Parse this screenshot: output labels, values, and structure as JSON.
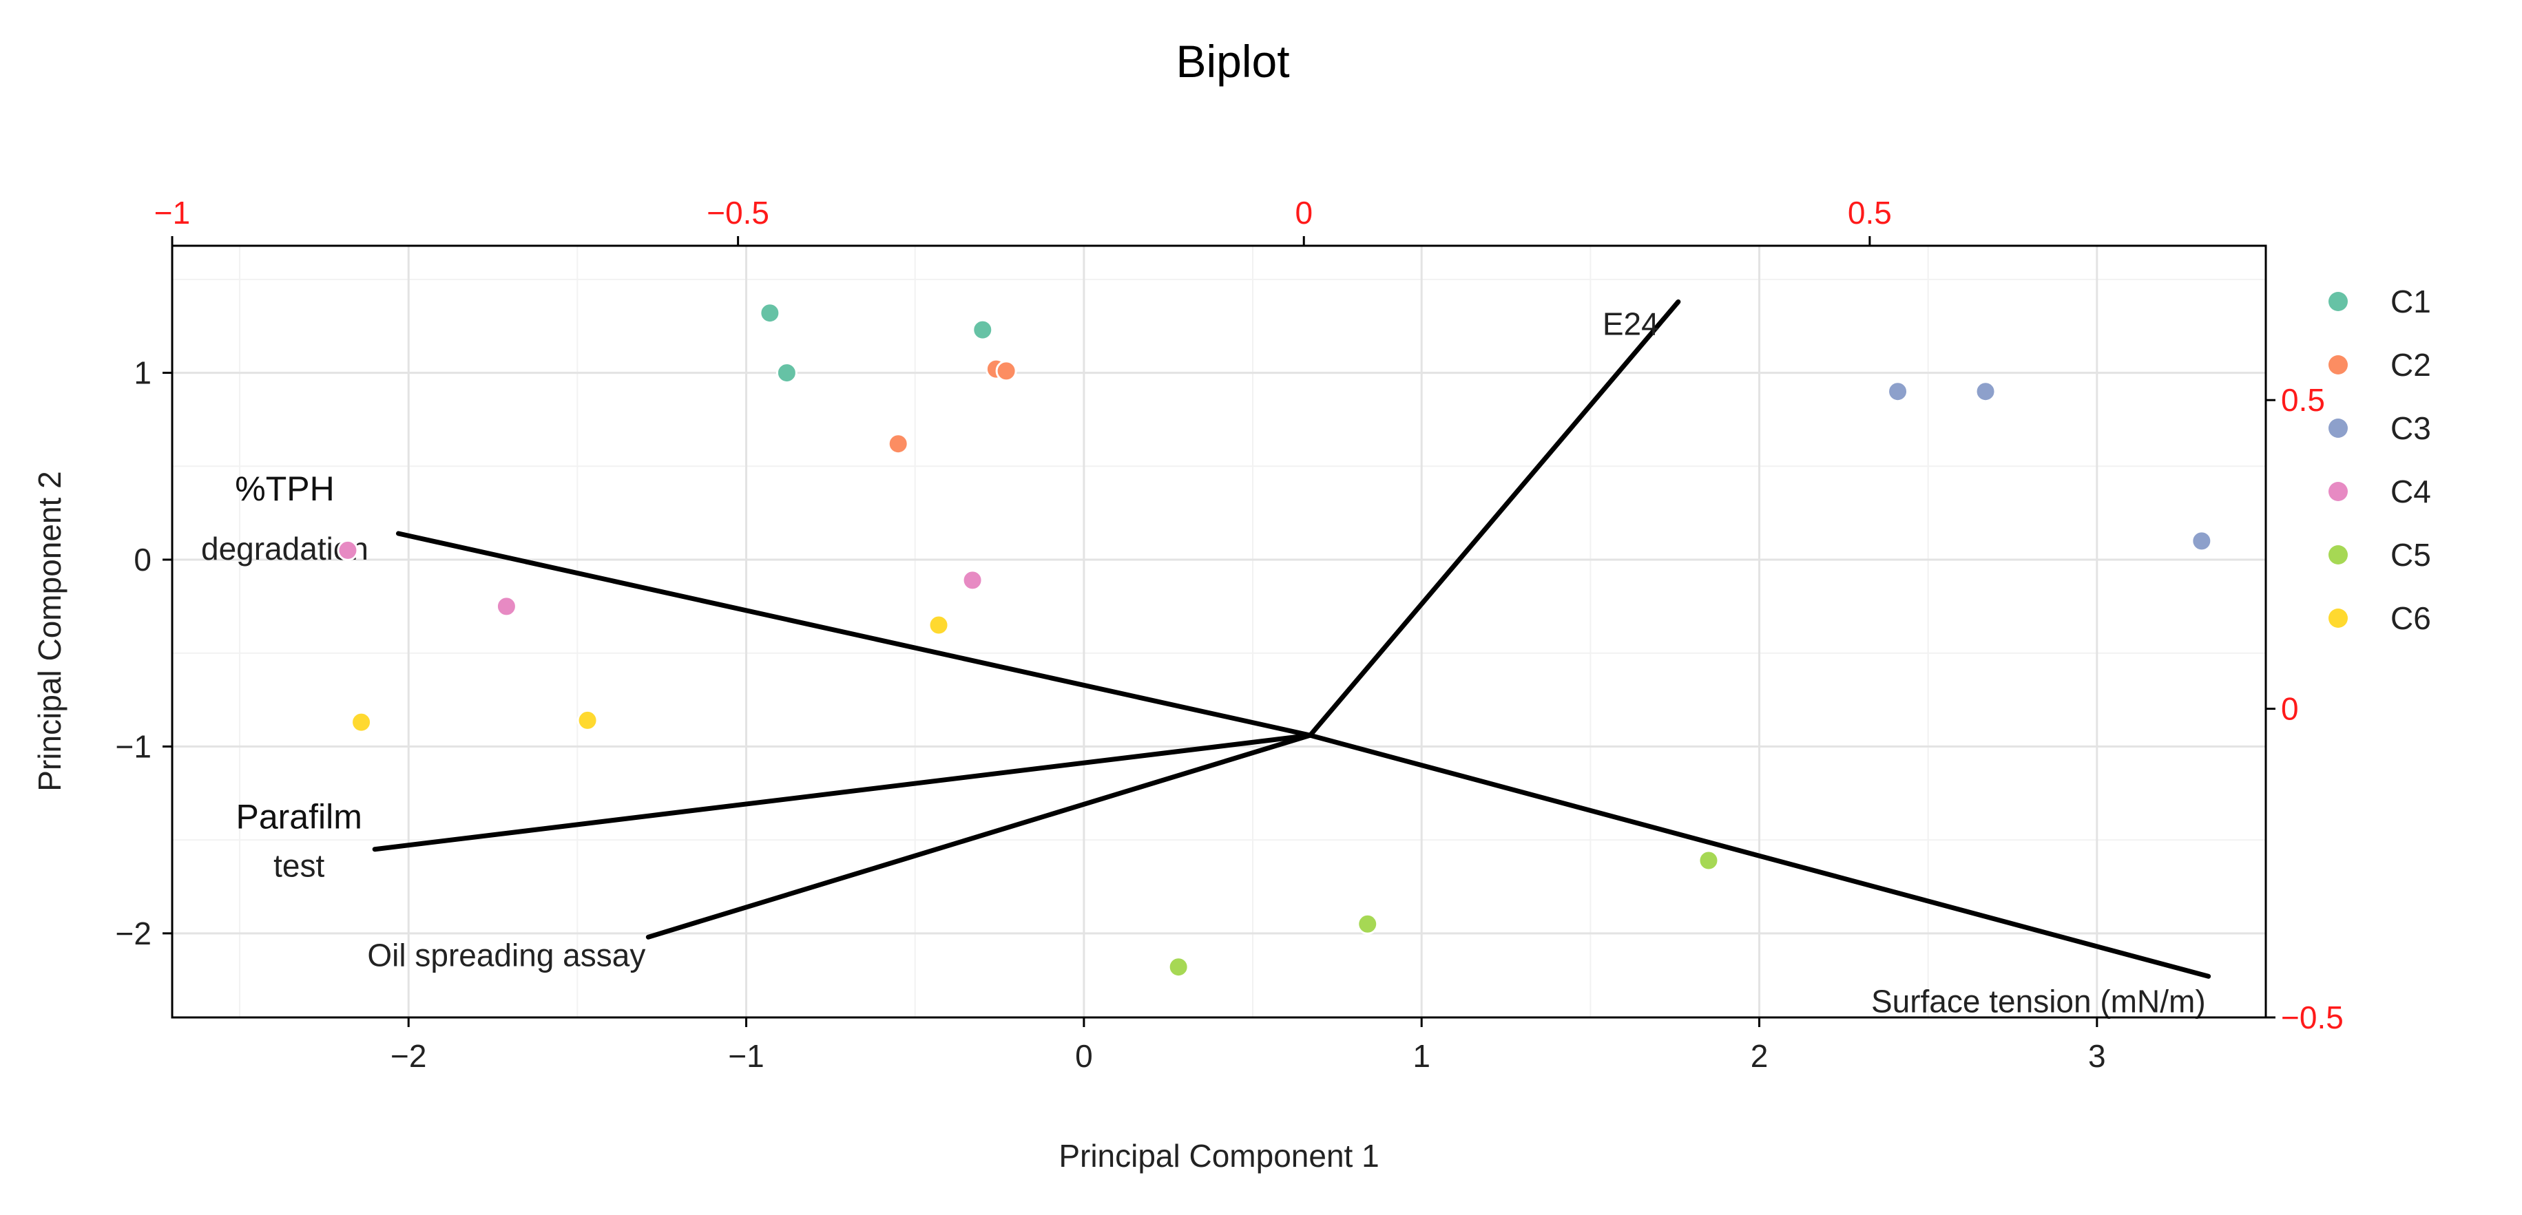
{
  "chart_data": {
    "type": "biplot",
    "title": "Biplot",
    "xlabel": "Principal Component 1",
    "ylabel": "Principal Component 2",
    "xlim": [
      -2.7,
      3.5
    ],
    "ylim": [
      -2.45,
      1.68
    ],
    "x_ticks": [
      -2,
      -1,
      0,
      1,
      2,
      3
    ],
    "x_tick_labels": [
      "−2",
      "−1",
      "0",
      "1",
      "2",
      "3"
    ],
    "y_ticks": [
      -2,
      -1,
      0,
      1
    ],
    "y_tick_labels": [
      "−2",
      "−1",
      "0",
      "1"
    ],
    "top_axis": {
      "xlim": [
        -1.0,
        0.85
      ],
      "ticks": [
        -1,
        -0.5,
        0,
        0.5
      ],
      "tick_labels": [
        "−1",
        "−0.5",
        "0",
        "0.5"
      ],
      "color": "#ff1a1a"
    },
    "right_axis": {
      "ylim": [
        -0.5,
        0.75
      ],
      "ticks": [
        -0.5,
        0,
        0.5
      ],
      "tick_labels": [
        "−0.5",
        "0",
        "0.5"
      ],
      "color": "#ff1a1a"
    },
    "series": [
      {
        "name": "C1",
        "color": "#66c2a5",
        "points": [
          [
            -0.93,
            1.32
          ],
          [
            -0.3,
            1.23
          ],
          [
            -0.88,
            1.0
          ]
        ]
      },
      {
        "name": "C2",
        "color": "#fc8d62",
        "points": [
          [
            -0.26,
            1.02
          ],
          [
            -0.23,
            1.01
          ],
          [
            -0.55,
            0.62
          ]
        ]
      },
      {
        "name": "C3",
        "color": "#8da0cb",
        "points": [
          [
            2.41,
            0.9
          ],
          [
            2.67,
            0.9
          ],
          [
            3.31,
            0.1
          ]
        ]
      },
      {
        "name": "C4",
        "color": "#e78ac3",
        "points": [
          [
            -2.18,
            0.05
          ],
          [
            -1.71,
            -0.25
          ],
          [
            -0.33,
            -0.11
          ]
        ]
      },
      {
        "name": "C5",
        "color": "#a6d854",
        "points": [
          [
            1.85,
            -1.61
          ],
          [
            0.84,
            -1.95
          ],
          [
            0.28,
            -2.18
          ]
        ]
      },
      {
        "name": "C6",
        "color": "#ffd92f",
        "points": [
          [
            -2.14,
            -0.87
          ],
          [
            -1.47,
            -0.86
          ],
          [
            -0.43,
            -0.35
          ]
        ]
      }
    ],
    "loadings_origin": [
      0.67,
      -0.94
    ],
    "loadings": [
      {
        "label": "E24",
        "end": [
          1.76,
          1.38
        ]
      },
      {
        "label": "%TPH degradation",
        "label_lines": [
          "%TPH",
          "degradation"
        ],
        "end": [
          -2.03,
          0.14
        ]
      },
      {
        "label": "Parafilm test",
        "label_lines": [
          "Parafilm",
          "test"
        ],
        "end": [
          -2.1,
          -1.55
        ]
      },
      {
        "label": "Oil spreading assay",
        "end": [
          -1.29,
          -2.02
        ]
      },
      {
        "label": "Surface tension (mN/m)",
        "end": [
          3.33,
          -2.23
        ]
      }
    ],
    "grid": true,
    "legend_position": "right"
  }
}
